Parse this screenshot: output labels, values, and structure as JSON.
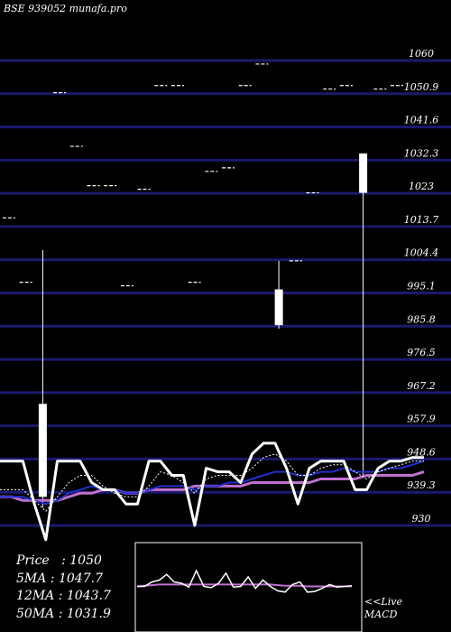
{
  "title": "BSE 939052 munafa.pro",
  "stats": {
    "price_label": "Price",
    "price": "1050",
    "ma5_label": "5MA",
    "ma5": "1047.7",
    "ma12_label": "12MA",
    "ma12": "1043.7",
    "ma50_label": "50MA",
    "ma50": "1031.9"
  },
  "live_label": "<<Live",
  "macd_label": "MACD",
  "colors": {
    "background": "#000000",
    "gridline": "#1a1a6e",
    "candle": "#ffffff",
    "price_line": "#ffffff",
    "ma_short": "#ffffff",
    "ma_mid": "#1f2fd0",
    "ma_long": "#c070d0",
    "accent_red": "#ff2020"
  },
  "chart_data": {
    "type": "candlestick",
    "title": "BSE 939052 munafa.pro",
    "y_ticks": [
      "1060",
      "1050.9",
      "1041.6",
      "1032.3",
      "1023",
      "1013.7",
      "1004.4",
      "995.1",
      "985.8",
      "976.5",
      "967.2",
      "957.9",
      "948.6",
      "939.3",
      "930"
    ],
    "ylim": [
      930,
      1060
    ],
    "y_axis_side": "right",
    "grid": true,
    "legend": "none",
    "candles": [
      {
        "o": 1016,
        "h": 1016,
        "l": 1016,
        "c": 1016
      },
      {
        "o": 998,
        "h": 998,
        "l": 998,
        "c": 998
      },
      {
        "o": 964,
        "h": 1007,
        "l": 935,
        "c": 938
      },
      {
        "o": 1051,
        "h": 1051,
        "l": 1051,
        "c": 1051
      },
      {
        "o": 1036,
        "h": 1036,
        "l": 1036,
        "c": 1036
      },
      {
        "o": 1025,
        "h": 1025,
        "l": 1025,
        "c": 1025
      },
      {
        "o": 1025,
        "h": 1025,
        "l": 1025,
        "c": 1025
      },
      {
        "o": 997,
        "h": 997,
        "l": 997,
        "c": 997
      },
      {
        "o": 1024,
        "h": 1024,
        "l": 1024,
        "c": 1024
      },
      {
        "o": 1053,
        "h": 1053,
        "l": 1053,
        "c": 1053
      },
      {
        "o": 1053,
        "h": 1053,
        "l": 1053,
        "c": 1053
      },
      {
        "o": 998,
        "h": 998,
        "l": 998,
        "c": 998
      },
      {
        "o": 1029,
        "h": 1029,
        "l": 1029,
        "c": 1029
      },
      {
        "o": 1030,
        "h": 1030,
        "l": 1030,
        "c": 1030
      },
      {
        "o": 1053,
        "h": 1053,
        "l": 1053,
        "c": 1053
      },
      {
        "o": 1059,
        "h": 1059,
        "l": 1059,
        "c": 1059
      },
      {
        "o": 996,
        "h": 1004,
        "l": 985,
        "c": 986
      },
      {
        "o": 1004,
        "h": 1004,
        "l": 1004,
        "c": 1004
      },
      {
        "o": 1023,
        "h": 1023,
        "l": 1023,
        "c": 1023
      },
      {
        "o": 1052,
        "h": 1052,
        "l": 1052,
        "c": 1052
      },
      {
        "o": 1053,
        "h": 1053,
        "l": 1053,
        "c": 1053
      },
      {
        "o": 1023,
        "h": 1034,
        "l": 944,
        "c": 1034
      },
      {
        "o": 1052,
        "h": 1052,
        "l": 1052,
        "c": 1052
      },
      {
        "o": 1053,
        "h": 1053,
        "l": 1053,
        "c": 1053
      }
    ],
    "price_series": [
      948,
      948,
      948,
      936,
      926,
      948,
      948,
      948,
      942,
      940,
      940,
      936,
      936,
      948,
      948,
      944,
      944,
      930,
      946,
      945,
      945,
      942,
      950,
      953,
      953,
      946,
      936,
      946,
      948,
      948,
      948,
      940,
      940,
      946,
      948,
      948,
      949,
      949
    ],
    "ma_short": [
      940,
      940,
      940,
      937,
      934,
      938,
      942,
      944,
      944,
      941,
      939,
      938,
      938,
      941,
      945,
      944,
      942,
      939,
      943,
      944,
      944,
      944,
      946,
      949,
      950,
      948,
      944,
      944,
      946,
      947,
      947,
      945,
      943,
      945,
      946,
      947,
      948,
      948
    ],
    "ma_mid": [
      938,
      938,
      938,
      937,
      936,
      937,
      939,
      940,
      941,
      940,
      940,
      939,
      939,
      940,
      941,
      941,
      941,
      940,
      941,
      941,
      942,
      942,
      943,
      944,
      945,
      945,
      944,
      944,
      945,
      945,
      946,
      945,
      945,
      945,
      946,
      946,
      947,
      948
    ],
    "ma_long": [
      938,
      938,
      937,
      937,
      937,
      937,
      938,
      939,
      939,
      940,
      940,
      939,
      939,
      940,
      940,
      940,
      940,
      941,
      941,
      941,
      941,
      941,
      942,
      942,
      942,
      942,
      942,
      942,
      943,
      943,
      943,
      943,
      944,
      944,
      944,
      944,
      944,
      945
    ]
  },
  "macd_data": {
    "macd": [
      0.5,
      0.5,
      1.2,
      1.5,
      2.4,
      1.2,
      1.0,
      0.4,
      3.0,
      0.5,
      0.3,
      1.0,
      2.6,
      0.4,
      0.5,
      2.0,
      0.2,
      1.5,
      0.5,
      -0.2,
      -0.4,
      0.8,
      1.2,
      -0.4,
      -0.3,
      0.2,
      0.8,
      0.4,
      0.5,
      0.6
    ],
    "signal": [
      0.5,
      0.6,
      0.7,
      0.8,
      0.8,
      0.8,
      0.8,
      0.8,
      0.8,
      0.8,
      0.8,
      0.8,
      0.8,
      0.8,
      0.8,
      0.8,
      0.8,
      0.8,
      0.8,
      0.7,
      0.6,
      0.6,
      0.6,
      0.5,
      0.5,
      0.5,
      0.5,
      0.5,
      0.5,
      0.5
    ]
  }
}
